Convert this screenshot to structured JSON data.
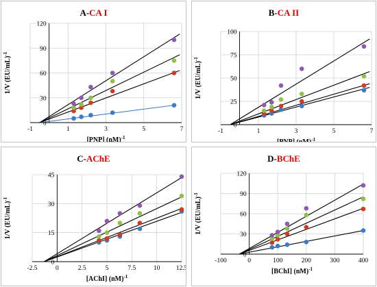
{
  "chart_data": [
    {
      "type": "scatter",
      "title_prefix": "A-",
      "title_highlight": "CA I",
      "xlabel": "[PNP] (nM)",
      "xlabel_sup": "-1",
      "ylabel": "1/V (EU/mL)",
      "ylabel_sup": "-1",
      "xlim": [
        -1,
        7
      ],
      "ylim": [
        0,
        120
      ],
      "xticks": [
        "-1",
        "1",
        "3",
        "5",
        "7"
      ],
      "yticks": [
        "0",
        "30",
        "60",
        "90",
        "120"
      ],
      "grid": true,
      "series": [
        {
          "color": "#3a7cc9",
          "x": [
            1.3,
            1.7,
            2.2,
            3.35,
            6.6
          ],
          "y": [
            5,
            7,
            9,
            12,
            21
          ]
        },
        {
          "color": "#d03a1e",
          "x": [
            1.3,
            1.7,
            2.2,
            3.35,
            6.6
          ],
          "y": [
            14,
            18,
            24,
            38,
            60
          ]
        },
        {
          "color": "#8fc04a",
          "x": [
            1.3,
            1.7,
            2.2,
            3.35,
            6.6
          ],
          "y": [
            18,
            22,
            30,
            50,
            75
          ]
        },
        {
          "color": "#8e58b3",
          "x": [
            1.3,
            1.7,
            2.2,
            3.35,
            6.6
          ],
          "y": [
            23,
            30,
            43,
            60,
            100
          ]
        }
      ],
      "fit_lines": [
        {
          "color": "#3a7cc9",
          "x0": -0.5,
          "y0": 0,
          "x1": 6.6,
          "y1": 21
        },
        {
          "color": "#000000",
          "x0": -0.5,
          "y0": 0,
          "x1": 6.9,
          "y1": 63
        },
        {
          "color": "#000000",
          "x0": -0.5,
          "y0": 0,
          "x1": 6.9,
          "y1": 82
        },
        {
          "color": "#000000",
          "x0": -0.5,
          "y0": 0,
          "x1": 6.9,
          "y1": 107
        }
      ]
    },
    {
      "type": "scatter",
      "title_prefix": "B-",
      "title_highlight": "CA II",
      "xlabel": "[PNP] (nM)",
      "xlabel_sup": "-1",
      "ylabel": "1/V (EU/mL)",
      "ylabel_sup": "-1",
      "xlim": [
        -1,
        7
      ],
      "ylim": [
        0,
        100
      ],
      "xticks": [
        "-1",
        "1",
        "3",
        "5",
        "7"
      ],
      "yticks": [
        "0",
        "25",
        "50",
        "75",
        "100"
      ],
      "grid": true,
      "series": [
        {
          "color": "#3a7cc9",
          "x": [
            1.3,
            1.7,
            2.2,
            3.3,
            6.6
          ],
          "y": [
            10,
            12,
            16,
            20,
            37
          ]
        },
        {
          "color": "#d03a1e",
          "x": [
            1.3,
            1.7,
            2.2,
            3.3,
            6.6
          ],
          "y": [
            12,
            15,
            20,
            25,
            42
          ]
        },
        {
          "color": "#8fc04a",
          "x": [
            1.3,
            1.7,
            2.2,
            3.3,
            6.6
          ],
          "y": [
            15,
            19,
            27,
            33,
            52
          ]
        },
        {
          "color": "#8e58b3",
          "x": [
            1.3,
            1.7,
            2.2,
            3.3,
            6.6
          ],
          "y": [
            21,
            24,
            42,
            60,
            84
          ]
        }
      ],
      "fit_lines": [
        {
          "color": "#000000",
          "x0": -0.5,
          "y0": 0,
          "x1": 6.9,
          "y1": 40
        },
        {
          "color": "#000000",
          "x0": -0.5,
          "y0": 0,
          "x1": 6.9,
          "y1": 44
        },
        {
          "color": "#000000",
          "x0": -0.5,
          "y0": 0,
          "x1": 6.9,
          "y1": 57
        },
        {
          "color": "#000000",
          "x0": -0.5,
          "y0": 0,
          "x1": 6.9,
          "y1": 92
        }
      ]
    },
    {
      "type": "scatter",
      "title_prefix": "C-",
      "title_highlight": "AChE",
      "xlabel": "[AChI] (nM)",
      "xlabel_sup": "-1",
      "ylabel": "1/V (EU/mL)",
      "ylabel_sup": "-1",
      "xlim": [
        -2.5,
        12.5
      ],
      "ylim": [
        0,
        45
      ],
      "xticks": [
        "-2.5",
        "0",
        "2.5",
        "5",
        "7.5",
        "10",
        "12.5"
      ],
      "yticks": [
        "0",
        "15",
        "30",
        "45"
      ],
      "grid": true,
      "series": [
        {
          "color": "#3a7cc9",
          "x": [
            4.2,
            5.0,
            6.3,
            8.3,
            12.5
          ],
          "y": [
            10,
            11,
            13,
            17,
            26
          ]
        },
        {
          "color": "#d03a1e",
          "x": [
            4.2,
            5.0,
            6.3,
            8.3,
            12.5
          ],
          "y": [
            11,
            12,
            14,
            20,
            27
          ]
        },
        {
          "color": "#8fc04a",
          "x": [
            4.2,
            5.0,
            6.3,
            8.3,
            12.5
          ],
          "y": [
            13,
            15,
            20,
            25,
            34
          ]
        },
        {
          "color": "#8e58b3",
          "x": [
            4.2,
            5.0,
            6.3,
            8.3,
            12.5
          ],
          "y": [
            16,
            21,
            25,
            29,
            44
          ]
        }
      ],
      "fit_lines": [
        {
          "color": "#000000",
          "x0": -1.3,
          "y0": 0,
          "x1": 12.5,
          "y1": 25.5
        },
        {
          "color": "#000000",
          "x0": -1.3,
          "y0": 0,
          "x1": 12.5,
          "y1": 27.5
        },
        {
          "color": "#000000",
          "x0": -1.3,
          "y0": 0,
          "x1": 12.5,
          "y1": 33.5
        },
        {
          "color": "#000000",
          "x0": -1.3,
          "y0": 0,
          "x1": 12.5,
          "y1": 43.5
        }
      ]
    },
    {
      "type": "scatter",
      "title_prefix": "D-",
      "title_highlight": "BChE",
      "xlabel": "[BChI] (nM)",
      "xlabel_sup": "-1",
      "ylabel": "1/V (EU/mL)",
      "ylabel_sup": "-1",
      "xlim": [
        -100,
        400
      ],
      "ylim": [
        0,
        120
      ],
      "xticks": [
        "-100",
        "0",
        "100",
        "200",
        "300",
        "400"
      ],
      "yticks": [
        "0",
        "30",
        "60",
        "90",
        "120"
      ],
      "grid": true,
      "series": [
        {
          "color": "#3a7cc9",
          "x": [
            80,
            100,
            133,
            200,
            400
          ],
          "y": [
            10,
            12,
            14,
            18,
            35
          ]
        },
        {
          "color": "#d03a1e",
          "x": [
            80,
            100,
            133,
            200,
            400
          ],
          "y": [
            17,
            22,
            30,
            40,
            67
          ]
        },
        {
          "color": "#8fc04a",
          "x": [
            80,
            100,
            133,
            200,
            400
          ],
          "y": [
            23,
            28,
            38,
            58,
            82
          ]
        },
        {
          "color": "#8e58b3",
          "x": [
            80,
            100,
            133,
            200,
            400
          ],
          "y": [
            28,
            33,
            45,
            68,
            102
          ]
        }
      ],
      "fit_lines": [
        {
          "color": "#000000",
          "x0": -35,
          "y0": 0,
          "x1": 400,
          "y1": 35
        },
        {
          "color": "#000000",
          "x0": -35,
          "y0": 0,
          "x1": 400,
          "y1": 68
        },
        {
          "color": "#000000",
          "x0": -35,
          "y0": 0,
          "x1": 400,
          "y1": 85
        },
        {
          "color": "#000000",
          "x0": -35,
          "y0": 0,
          "x1": 400,
          "y1": 104
        }
      ]
    }
  ]
}
